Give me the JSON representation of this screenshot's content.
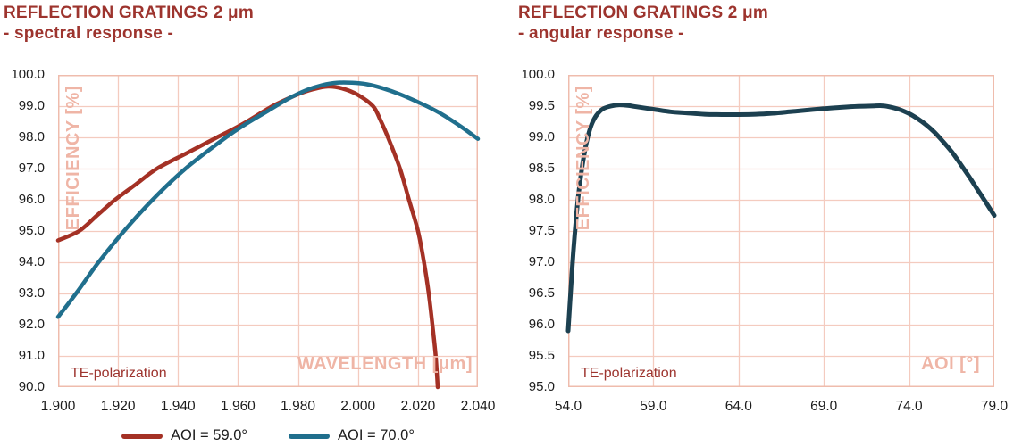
{
  "palette": {
    "brand": "#9D342E",
    "ink": "#1C1C1C",
    "grid": "#F4CBBF",
    "border": "#EFBCAD",
    "labelpink": "#EFB5A6"
  },
  "chart_data": [
    {
      "type": "line",
      "title_line1": "REFLECTION GRATINGS 2 μm",
      "title_line2": "- spectral response -",
      "inner_ylabel": "EFFICIENCY [%]",
      "inner_xlabel": "WAVELENGTH [μm]",
      "note": "TE-polarization",
      "x_min": 1.9,
      "x_max": 2.04,
      "x_step": 0.02,
      "x_decimals": 3,
      "y_min": 90.0,
      "y_max": 100.0,
      "y_step": 1.0,
      "y_decimals": 1,
      "grid": "on",
      "legend": true,
      "legend_position": "bottom",
      "series": [
        {
          "name": "AOI = 59.0°",
          "color": "#A43125",
          "width": 4.5,
          "points": [
            [
              1.9,
              94.7
            ],
            [
              1.907,
              95.0
            ],
            [
              1.913,
              95.5
            ],
            [
              1.919,
              96.0
            ],
            [
              1.926,
              96.5
            ],
            [
              1.933,
              97.0
            ],
            [
              1.943,
              97.5
            ],
            [
              1.953,
              98.0
            ],
            [
              1.962,
              98.45
            ],
            [
              1.9715,
              99.0
            ],
            [
              1.98,
              99.38
            ],
            [
              1.985,
              99.54
            ],
            [
              1.99,
              99.63
            ],
            [
              1.995,
              99.56
            ],
            [
              2.0,
              99.36
            ],
            [
              2.005,
              99.0
            ],
            [
              2.0075,
              98.55
            ],
            [
              2.01,
              98.0
            ],
            [
              2.014,
              97.0
            ],
            [
              2.017,
              96.0
            ],
            [
              2.02,
              95.0
            ],
            [
              2.022,
              94.0
            ],
            [
              2.0236,
              93.0
            ],
            [
              2.0248,
              92.0
            ],
            [
              2.0259,
              91.0
            ],
            [
              2.0266,
              90.0
            ]
          ]
        },
        {
          "name": "AOI = 70.0°",
          "color": "#206F8D",
          "width": 4.5,
          "points": [
            [
              1.9,
              92.25
            ],
            [
              1.906,
              93.0
            ],
            [
              1.9135,
              94.0
            ],
            [
              1.922,
              95.0
            ],
            [
              1.9315,
              96.0
            ],
            [
              1.9425,
              97.0
            ],
            [
              1.956,
              98.0
            ],
            [
              1.963,
              98.45
            ],
            [
              1.97,
              98.85
            ],
            [
              1.977,
              99.25
            ],
            [
              1.983,
              99.52
            ],
            [
              1.988,
              99.67
            ],
            [
              1.993,
              99.75
            ],
            [
              1.998,
              99.75
            ],
            [
              2.003,
              99.7
            ],
            [
              2.008,
              99.58
            ],
            [
              2.014,
              99.38
            ],
            [
              2.02,
              99.13
            ],
            [
              2.026,
              98.85
            ],
            [
              2.03,
              98.62
            ],
            [
              2.035,
              98.3
            ],
            [
              2.04,
              97.95
            ]
          ]
        }
      ]
    },
    {
      "type": "line",
      "title_line1": "REFLECTION GRATINGS 2 μm",
      "title_line2": "- angular response -",
      "inner_ylabel": "EFFICIENCY [%]",
      "inner_xlabel": "AOI [°]",
      "note": "TE-polarization",
      "x_min": 54.0,
      "x_max": 79.0,
      "x_step": 5.0,
      "x_decimals": 1,
      "y_min": 95.0,
      "y_max": 100.0,
      "y_step": 0.5,
      "y_decimals": 1,
      "grid": "on",
      "legend": false,
      "series": [
        {
          "color": "#1C4050",
          "width": 5,
          "points": [
            [
              54.0,
              95.9
            ],
            [
              54.15,
              96.55
            ],
            [
              54.3,
              97.15
            ],
            [
              54.5,
              97.8
            ],
            [
              54.7,
              98.3
            ],
            [
              55.0,
              98.82
            ],
            [
              55.3,
              99.15
            ],
            [
              55.6,
              99.33
            ],
            [
              56.0,
              99.45
            ],
            [
              56.5,
              99.5
            ],
            [
              57.0,
              99.52
            ],
            [
              57.5,
              99.51
            ],
            [
              58.0,
              99.49
            ],
            [
              59.0,
              99.45
            ],
            [
              60.0,
              99.41
            ],
            [
              61.0,
              99.39
            ],
            [
              62.0,
              99.37
            ],
            [
              63.0,
              99.365
            ],
            [
              64.0,
              99.365
            ],
            [
              65.0,
              99.37
            ],
            [
              66.0,
              99.385
            ],
            [
              67.0,
              99.41
            ],
            [
              68.0,
              99.435
            ],
            [
              69.0,
              99.46
            ],
            [
              70.0,
              99.48
            ],
            [
              71.0,
              99.495
            ],
            [
              72.0,
              99.505
            ],
            [
              72.5,
              99.505
            ],
            [
              73.0,
              99.48
            ],
            [
              73.5,
              99.44
            ],
            [
              74.0,
              99.38
            ],
            [
              74.5,
              99.3
            ],
            [
              75.0,
              99.2
            ],
            [
              75.5,
              99.08
            ],
            [
              76.0,
              98.93
            ],
            [
              76.5,
              98.77
            ],
            [
              77.0,
              98.58
            ],
            [
              77.5,
              98.38
            ],
            [
              78.0,
              98.17
            ],
            [
              78.5,
              97.96
            ],
            [
              79.0,
              97.75
            ]
          ]
        }
      ]
    }
  ]
}
